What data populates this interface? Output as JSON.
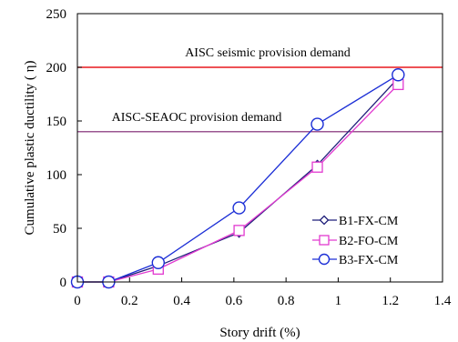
{
  "chart_data": {
    "type": "line",
    "xlabel": "Story drift (%)",
    "ylabel": "Cumulative plastic ductility ( η)",
    "xlim": [
      0,
      1.4
    ],
    "ylim": [
      0,
      250
    ],
    "x_ticks": [
      0,
      0.2,
      0.4,
      0.6,
      0.8,
      1,
      1.2,
      1.4
    ],
    "x_tick_labels": [
      "0",
      "0.2",
      "0.4",
      "0.6",
      "0.8",
      "1",
      "1.2",
      "1.4"
    ],
    "y_ticks": [
      0,
      50,
      100,
      150,
      200,
      250
    ],
    "y_tick_labels": [
      "0",
      "50",
      "100",
      "150",
      "200",
      "250"
    ],
    "grid": false,
    "legend_position": "lower-right",
    "reference_lines": [
      {
        "label": "AISC seismic provision demand",
        "y": 200,
        "color": "#e8191e"
      },
      {
        "label": "AISC-SEAOC provision demand",
        "y": 140,
        "color": "#7a1f6e"
      }
    ],
    "series": [
      {
        "name": "B1-FX-CM",
        "color": "#1f1f7a",
        "marker": "diamond",
        "x": [
          0,
          0.12,
          0.31,
          0.62,
          0.92,
          1.23
        ],
        "y": [
          0,
          0,
          15,
          46,
          109,
          190
        ]
      },
      {
        "name": "B2-FO-CM",
        "color": "#e23ad0",
        "marker": "square",
        "x": [
          0,
          0.12,
          0.31,
          0.62,
          0.92,
          1.23
        ],
        "y": [
          0,
          0,
          12,
          48,
          107,
          184
        ]
      },
      {
        "name": "B3-FX-CM",
        "color": "#1c2fd6",
        "marker": "circle",
        "x": [
          0,
          0.12,
          0.31,
          0.62,
          0.92,
          1.23
        ],
        "y": [
          0,
          0,
          18,
          69,
          147,
          193
        ]
      }
    ]
  }
}
